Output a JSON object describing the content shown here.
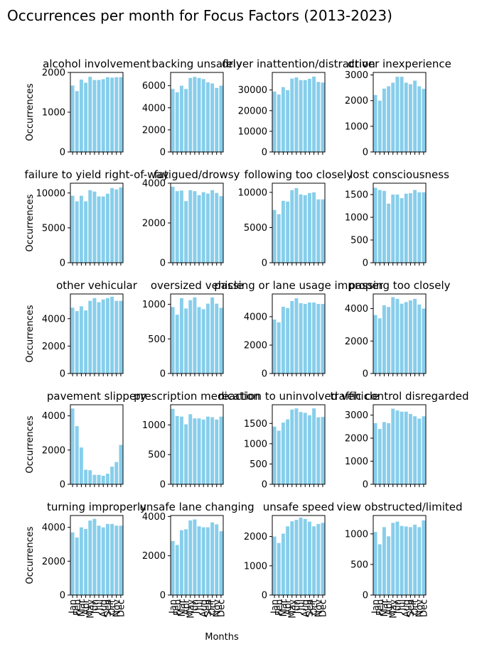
{
  "figure": {
    "title": "Occurrences per month for Focus Factors (2013-2023)",
    "xlabel": "Months",
    "ylabel": "Occurrences"
  },
  "colors": {
    "bar": "#87ceeb",
    "axis": "#000000"
  },
  "chart_data": [
    {
      "type": "bar",
      "title": "alcohol involvement",
      "categories": [
        "Jan",
        "Feb",
        "Mar",
        "Apr",
        "May",
        "Jun",
        "Jul",
        "Aug",
        "Sep",
        "Oct",
        "Nov",
        "Dec"
      ],
      "values": [
        1670,
        1530,
        1820,
        1740,
        1890,
        1810,
        1810,
        1830,
        1880,
        1870,
        1880,
        1880
      ],
      "ylim": [
        0,
        2000
      ],
      "yticks": [
        0,
        1000,
        2000
      ],
      "ytick_labels": [
        "0",
        "1000",
        "2000"
      ]
    },
    {
      "type": "bar",
      "title": "backing unsafely",
      "categories": [
        "Jan",
        "Feb",
        "Mar",
        "Apr",
        "May",
        "Jun",
        "Jul",
        "Aug",
        "Sep",
        "Oct",
        "Nov",
        "Dec"
      ],
      "values": [
        5700,
        5400,
        6000,
        5700,
        6700,
        6800,
        6700,
        6600,
        6300,
        6200,
        5800,
        6000
      ],
      "ylim": [
        0,
        7200
      ],
      "yticks": [
        0,
        2000,
        4000,
        6000
      ],
      "ytick_labels": [
        "0",
        "2000",
        "4000",
        "6000"
      ]
    },
    {
      "type": "bar",
      "title": "driver inattention/distraction",
      "categories": [
        "Jan",
        "Feb",
        "Mar",
        "Apr",
        "May",
        "Jun",
        "Jul",
        "Aug",
        "Sep",
        "Oct",
        "Nov",
        "Dec"
      ],
      "values": [
        29200,
        27800,
        31400,
        29900,
        35500,
        36100,
        34800,
        34800,
        35400,
        36500,
        33900,
        33600
      ],
      "ylim": [
        0,
        38500
      ],
      "yticks": [
        0,
        10000,
        20000,
        30000
      ],
      "ytick_labels": [
        "0",
        "10000",
        "20000",
        "30000"
      ]
    },
    {
      "type": "bar",
      "title": "driver inexperience",
      "categories": [
        "Jan",
        "Feb",
        "Mar",
        "Apr",
        "May",
        "Jun",
        "Jul",
        "Aug",
        "Sep",
        "Oct",
        "Nov",
        "Dec"
      ],
      "values": [
        2220,
        2000,
        2470,
        2560,
        2700,
        2930,
        2930,
        2700,
        2640,
        2780,
        2560,
        2460
      ],
      "ylim": [
        0,
        3100
      ],
      "yticks": [
        0,
        1000,
        2000,
        3000
      ],
      "ytick_labels": [
        "0",
        "1000",
        "2000",
        "3000"
      ]
    },
    {
      "type": "bar",
      "title": "failure to yield right-of-way",
      "categories": [
        "Jan",
        "Feb",
        "Mar",
        "Apr",
        "May",
        "Jun",
        "Jul",
        "Aug",
        "Sep",
        "Oct",
        "Nov",
        "Dec"
      ],
      "values": [
        9600,
        8800,
        9600,
        8800,
        10400,
        10200,
        9500,
        9500,
        9900,
        10700,
        10500,
        10800
      ],
      "ylim": [
        0,
        11400
      ],
      "yticks": [
        0,
        5000,
        10000
      ],
      "ytick_labels": [
        "0",
        "5000",
        "10000"
      ]
    },
    {
      "type": "bar",
      "title": "fatigued/drowsy",
      "categories": [
        "Jan",
        "Feb",
        "Mar",
        "Apr",
        "May",
        "Jun",
        "Jul",
        "Aug",
        "Sep",
        "Oct",
        "Nov",
        "Dec"
      ],
      "values": [
        3820,
        3600,
        3630,
        3100,
        3650,
        3600,
        3400,
        3550,
        3480,
        3650,
        3510,
        3350
      ],
      "ylim": [
        0,
        4000
      ],
      "yticks": [
        0,
        2000,
        4000
      ],
      "ytick_labels": [
        "0",
        "2000",
        "4000"
      ]
    },
    {
      "type": "bar",
      "title": "following too closely",
      "categories": [
        "Jan",
        "Feb",
        "Mar",
        "Apr",
        "May",
        "Jun",
        "Jul",
        "Aug",
        "Sep",
        "Oct",
        "Nov",
        "Dec"
      ],
      "values": [
        7500,
        6900,
        8800,
        8700,
        10300,
        10600,
        9700,
        9600,
        9900,
        10000,
        9000,
        9000
      ],
      "ylim": [
        0,
        11300
      ],
      "yticks": [
        0,
        5000,
        10000
      ],
      "ytick_labels": [
        "0",
        "5000",
        "10000"
      ]
    },
    {
      "type": "bar",
      "title": "lost consciousness",
      "categories": [
        "Jan",
        "Feb",
        "Mar",
        "Apr",
        "May",
        "Jun",
        "Jul",
        "Aug",
        "Sep",
        "Oct",
        "Nov",
        "Dec"
      ],
      "values": [
        1650,
        1600,
        1580,
        1300,
        1500,
        1500,
        1420,
        1520,
        1530,
        1600,
        1550,
        1550
      ],
      "ylim": [
        0,
        1750
      ],
      "yticks": [
        0,
        500,
        1000,
        1500
      ],
      "ytick_labels": [
        "0",
        "500",
        "1000",
        "1500"
      ]
    },
    {
      "type": "bar",
      "title": "other vehicular",
      "categories": [
        "Jan",
        "Feb",
        "Mar",
        "Apr",
        "May",
        "Jun",
        "Jul",
        "Aug",
        "Sep",
        "Oct",
        "Nov",
        "Dec"
      ],
      "values": [
        4800,
        4550,
        4900,
        4600,
        5300,
        5500,
        5200,
        5400,
        5500,
        5600,
        5300,
        5300
      ],
      "ylim": [
        0,
        5800
      ],
      "yticks": [
        0,
        2000,
        4000
      ],
      "ytick_labels": [
        "0",
        "2000",
        "4000"
      ]
    },
    {
      "type": "bar",
      "title": "oversized vehicle",
      "categories": [
        "Jan",
        "Feb",
        "Mar",
        "Apr",
        "May",
        "Jun",
        "Jul",
        "Aug",
        "Sep",
        "Oct",
        "Nov",
        "Dec"
      ],
      "values": [
        960,
        850,
        1090,
        940,
        1060,
        1100,
        960,
        930,
        1010,
        1100,
        1010,
        950
      ],
      "ylim": [
        0,
        1150
      ],
      "yticks": [
        0,
        500,
        1000
      ],
      "ytick_labels": [
        "0",
        "500",
        "1000"
      ]
    },
    {
      "type": "bar",
      "title": "passing or lane usage improper",
      "categories": [
        "Jan",
        "Feb",
        "Mar",
        "Apr",
        "May",
        "Jun",
        "Jul",
        "Aug",
        "Sep",
        "Oct",
        "Nov",
        "Dec"
      ],
      "values": [
        3800,
        3600,
        4700,
        4600,
        5100,
        5300,
        4950,
        4900,
        5000,
        5000,
        4900,
        4900
      ],
      "ylim": [
        0,
        5600
      ],
      "yticks": [
        0,
        2000,
        4000
      ],
      "ytick_labels": [
        "0",
        "2000",
        "4000"
      ]
    },
    {
      "type": "bar",
      "title": "passing too closely",
      "categories": [
        "Jan",
        "Feb",
        "Mar",
        "Apr",
        "May",
        "Jun",
        "Jul",
        "Aug",
        "Sep",
        "Oct",
        "Nov",
        "Dec"
      ],
      "values": [
        3600,
        3400,
        4200,
        4100,
        4700,
        4600,
        4300,
        4400,
        4500,
        4600,
        4250,
        4000
      ],
      "ylim": [
        0,
        4900
      ],
      "yticks": [
        0,
        2000,
        4000
      ],
      "ytick_labels": [
        "0",
        "2000",
        "4000"
      ]
    },
    {
      "type": "bar",
      "title": "pavement slippery",
      "categories": [
        "Jan",
        "Feb",
        "Mar",
        "Apr",
        "May",
        "Jun",
        "Jul",
        "Aug",
        "Sep",
        "Oct",
        "Nov",
        "Dec"
      ],
      "values": [
        4430,
        3400,
        2150,
        850,
        820,
        550,
        550,
        500,
        620,
        1030,
        1300,
        2300
      ],
      "ylim": [
        0,
        4650
      ],
      "yticks": [
        0,
        2000,
        4000
      ],
      "ytick_labels": [
        "0",
        "2000",
        "4000"
      ]
    },
    {
      "type": "bar",
      "title": "prescription medication",
      "categories": [
        "Jan",
        "Feb",
        "Mar",
        "Apr",
        "May",
        "Jun",
        "Jul",
        "Aug",
        "Sep",
        "Oct",
        "Nov",
        "Dec"
      ],
      "values": [
        1270,
        1150,
        1140,
        1010,
        1180,
        1110,
        1110,
        1090,
        1140,
        1130,
        1090,
        1140
      ],
      "ylim": [
        0,
        1340
      ],
      "yticks": [
        0,
        500,
        1000
      ],
      "ytick_labels": [
        "0",
        "500",
        "1000"
      ]
    },
    {
      "type": "bar",
      "title": "reaction to uninvolved vehicle",
      "categories": [
        "Jan",
        "Feb",
        "Mar",
        "Apr",
        "May",
        "Jun",
        "Jul",
        "Aug",
        "Sep",
        "Oct",
        "Nov",
        "Dec"
      ],
      "values": [
        1420,
        1320,
        1520,
        1600,
        1840,
        1870,
        1780,
        1760,
        1700,
        1870,
        1650,
        1660
      ],
      "ylim": [
        0,
        1960
      ],
      "yticks": [
        0,
        500,
        1000,
        1500
      ],
      "ytick_labels": [
        "0",
        "500",
        "1000",
        "1500"
      ]
    },
    {
      "type": "bar",
      "title": "traffic control disregarded",
      "categories": [
        "Jan",
        "Feb",
        "Mar",
        "Apr",
        "May",
        "Jun",
        "Jul",
        "Aug",
        "Sep",
        "Oct",
        "Nov",
        "Dec"
      ],
      "values": [
        2650,
        2400,
        2700,
        2650,
        3280,
        3200,
        3150,
        3150,
        3050,
        2950,
        2850,
        2950
      ],
      "ylim": [
        0,
        3450
      ],
      "yticks": [
        0,
        1000,
        2000,
        3000
      ],
      "ytick_labels": [
        "0",
        "1000",
        "2000",
        "3000"
      ]
    },
    {
      "type": "bar",
      "title": "turning improperly",
      "categories": [
        "Jan",
        "Feb",
        "Mar",
        "Apr",
        "May",
        "Jun",
        "Jul",
        "Aug",
        "Sep",
        "Oct",
        "Nov",
        "Dec"
      ],
      "values": [
        3700,
        3400,
        4000,
        3900,
        4400,
        4500,
        4100,
        4000,
        4200,
        4200,
        4100,
        4100
      ],
      "ylim": [
        0,
        4700
      ],
      "yticks": [
        0,
        2000,
        4000
      ],
      "ytick_labels": [
        "0",
        "2000",
        "4000"
      ]
    },
    {
      "type": "bar",
      "title": "unsafe lane changing",
      "categories": [
        "Jan",
        "Feb",
        "Mar",
        "Apr",
        "May",
        "Jun",
        "Jul",
        "Aug",
        "Sep",
        "Oct",
        "Nov",
        "Dec"
      ],
      "values": [
        2750,
        2550,
        3300,
        3350,
        3800,
        3850,
        3500,
        3450,
        3450,
        3700,
        3600,
        3250
      ],
      "ylim": [
        0,
        4050
      ],
      "yticks": [
        0,
        2000,
        4000
      ],
      "ytick_labels": [
        "0",
        "2000",
        "4000"
      ]
    },
    {
      "type": "bar",
      "title": "unsafe speed",
      "categories": [
        "Jan",
        "Feb",
        "Mar",
        "Apr",
        "May",
        "Jun",
        "Jul",
        "Aug",
        "Sep",
        "Oct",
        "Nov",
        "Dec"
      ],
      "values": [
        2000,
        1780,
        2100,
        2350,
        2520,
        2570,
        2650,
        2600,
        2510,
        2350,
        2430,
        2470
      ],
      "ylim": [
        0,
        2720
      ],
      "yticks": [
        0,
        1000,
        2000
      ],
      "ytick_labels": [
        "0",
        "1000",
        "2000"
      ]
    },
    {
      "type": "bar",
      "title": "view obstructed/limited",
      "categories": [
        "Jan",
        "Feb",
        "Mar",
        "Apr",
        "May",
        "Jun",
        "Jul",
        "Aug",
        "Sep",
        "Oct",
        "Nov",
        "Dec"
      ],
      "values": [
        1030,
        830,
        1110,
        960,
        1180,
        1200,
        1130,
        1120,
        1110,
        1150,
        1110,
        1220
      ],
      "ylim": [
        0,
        1300
      ],
      "yticks": [
        0,
        500,
        1000
      ],
      "ytick_labels": [
        "0",
        "500",
        "1000"
      ]
    }
  ]
}
